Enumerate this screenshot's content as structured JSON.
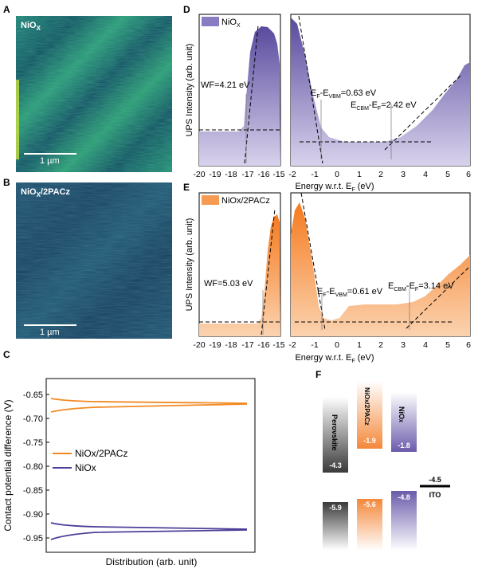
{
  "panels": {
    "A": {
      "label": "A",
      "title": "NiO",
      "sub": "X",
      "scale": "1 µm"
    },
    "B": {
      "label": "B",
      "title": "NiO",
      "sub": "X",
      "title_tail": "/2PACz",
      "scale": "1 µm"
    },
    "C": {
      "label": "C"
    },
    "D": {
      "label": "D"
    },
    "E": {
      "label": "E"
    },
    "F": {
      "label": "F"
    }
  },
  "ups_d": {
    "legend": "NiO",
    "legend_sub": "X",
    "wf": "WF=4.21 eV",
    "ef_vbm": "E",
    "ef_vbm_sub1": "F",
    "ef_vbm_mid": "-E",
    "ef_vbm_sub2": "VBM",
    "ef_vbm_val": "=0.63 eV",
    "cbm": "E",
    "cbm_sub1": "CBM",
    "cbm_mid": "-E",
    "cbm_sub2": "F",
    "cbm_val": "=2.42 eV",
    "xticks_left": [
      "-20",
      "-19",
      "-18",
      "-17",
      "-16",
      "-15"
    ],
    "xticks_right": [
      "-2",
      "-1",
      "0",
      "1",
      "2",
      "3",
      "4",
      "5",
      "6"
    ],
    "xlabel": "Energy w.r.t. E",
    "xlabel_sub": "F",
    "xlabel_tail": " (eV)",
    "ylabel": "UPS Intensity (arb. unit)"
  },
  "ups_e": {
    "legend": "NiOx/2PACz",
    "wf": "WF=5.03 eV",
    "ef_vbm": "E",
    "ef_vbm_sub1": "F",
    "ef_vbm_mid": "-E",
    "ef_vbm_sub2": "VBM",
    "ef_vbm_val": "=0.61 eV",
    "cbm": "E",
    "cbm_sub1": "CBM",
    "cbm_mid": "-E",
    "cbm_sub2": "F",
    "cbm_val": "=3.14 eV",
    "xticks_left": [
      "-20",
      "-19",
      "-18",
      "-17",
      "-16",
      "-15"
    ],
    "xticks_right": [
      "-2",
      "-1",
      "0",
      "1",
      "2",
      "3",
      "4",
      "5",
      "6"
    ],
    "xlabel": "Energy w.r.t. E",
    "xlabel_sub": "F",
    "xlabel_tail": " (eV)",
    "ylabel": "UPS Intensity (arb. unit)"
  },
  "kpfm": {
    "ylabel": "Contact potential difference (V)",
    "xlabel": "Distribution (arb. unit)",
    "yticks": [
      "-0.65",
      "-0.70",
      "-0.75",
      "-0.80",
      "-0.85",
      "-0.90",
      "-0.95"
    ],
    "legend": [
      {
        "name": "NiOx/2PACz",
        "color": "#f28a24"
      },
      {
        "name": "NiOx",
        "color": "#4b3f98"
      }
    ]
  },
  "energy": {
    "perovskite": {
      "name": "Perovskite",
      "cb": "-4.3",
      "vb": "-5.9"
    },
    "nio2pacz": {
      "name": "NiO",
      "name_sub": "X",
      "name_tail": "/2PACz",
      "cb": "-1.9",
      "vb": "-5.6"
    },
    "niox": {
      "name": "NiO",
      "name_sub": "X",
      "cb": "-1.8",
      "vb": "-4.8"
    },
    "ito": {
      "name": "ITO",
      "level": "-4.5"
    }
  },
  "colors": {
    "purple": "#6b5bab",
    "orange": "#f4883a",
    "purple_line": "#4b3f98",
    "orange_line": "#f28a24"
  }
}
